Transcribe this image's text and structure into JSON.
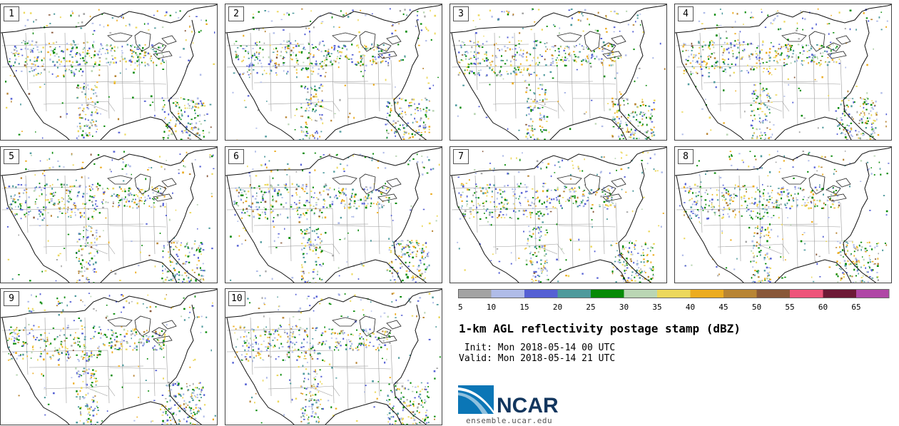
{
  "chart_data": {
    "type": "heatmap",
    "title": "1-km AGL reflectivity postage stamp (dBZ)",
    "init_time": " Init: Mon 2018-05-14 00 UTC",
    "valid_time": "Valid: Mon 2018-05-14 21 UTC",
    "members": [
      "1",
      "2",
      "3",
      "4",
      "5",
      "6",
      "7",
      "8",
      "9",
      "10"
    ],
    "colorbar": {
      "ticks": [
        "5",
        "10",
        "15",
        "20",
        "25",
        "30",
        "35",
        "40",
        "45",
        "50",
        "55",
        "60",
        "65"
      ],
      "bins": [
        {
          "from": 5,
          "to": 10,
          "color": "#a3a3a3"
        },
        {
          "from": 10,
          "to": 15,
          "color": "#b0bce8"
        },
        {
          "from": 15,
          "to": 20,
          "color": "#5560d4"
        },
        {
          "from": 20,
          "to": 25,
          "color": "#4e9a9c"
        },
        {
          "from": 25,
          "to": 30,
          "color": "#078a07"
        },
        {
          "from": 30,
          "to": 35,
          "color": "#bad6b4"
        },
        {
          "from": 35,
          "to": 40,
          "color": "#ecd85c"
        },
        {
          "from": 40,
          "to": 45,
          "color": "#ecac20"
        },
        {
          "from": 45,
          "to": 50,
          "color": "#b88534"
        },
        {
          "from": 50,
          "to": 55,
          "color": "#885738"
        },
        {
          "from": 55,
          "to": 60,
          "color": "#ee547a"
        },
        {
          "from": 60,
          "to": 65,
          "color": "#6d1936"
        },
        {
          "from": 65,
          "to": 70,
          "color": "#b047a6"
        }
      ]
    }
  },
  "branding": {
    "logo_text": "NCAR",
    "website": "ensemble.ucar.edu",
    "logo_color": "#0b76b6",
    "logo_text_color": "#12365e"
  }
}
